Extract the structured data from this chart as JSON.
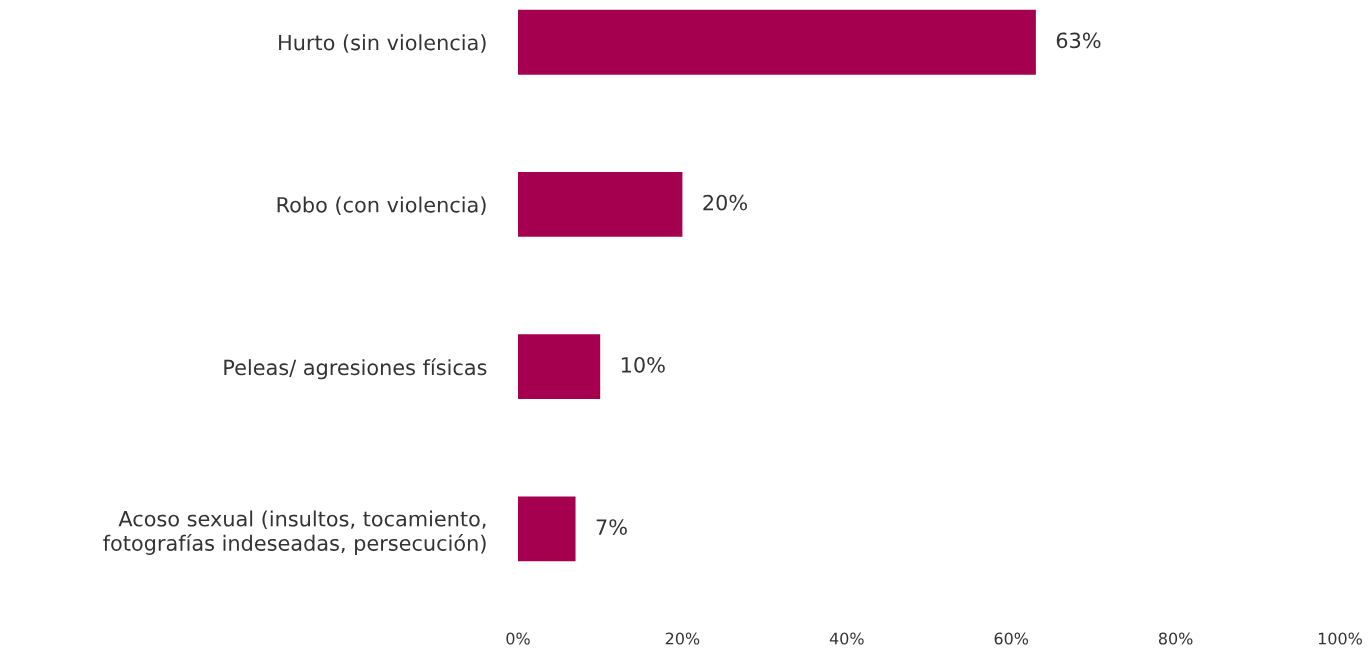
{
  "chart_data": {
    "type": "bar",
    "orientation": "horizontal",
    "categories": [
      "Hurto (sin violencia)",
      "Robo (con violencia)",
      "Peleas/ agresiones físicas",
      "Acoso sexual (insultos, tocamiento,\nfotografías indeseadas, persecución)"
    ],
    "values": [
      63,
      20,
      10,
      7
    ],
    "color": "#a50050",
    "value_labels": [
      "63%",
      "20%",
      "10%",
      "7%"
    ],
    "xlim": [
      0,
      100
    ],
    "xticks": [
      {
        "value": 0,
        "label": "0%"
      },
      {
        "value": 20,
        "label": "20%"
      },
      {
        "value": 40,
        "label": "40%"
      },
      {
        "value": 60,
        "label": "60%"
      },
      {
        "value": 80,
        "label": "80%"
      },
      {
        "value": 100,
        "label": "100%"
      }
    ],
    "grid": false
  }
}
